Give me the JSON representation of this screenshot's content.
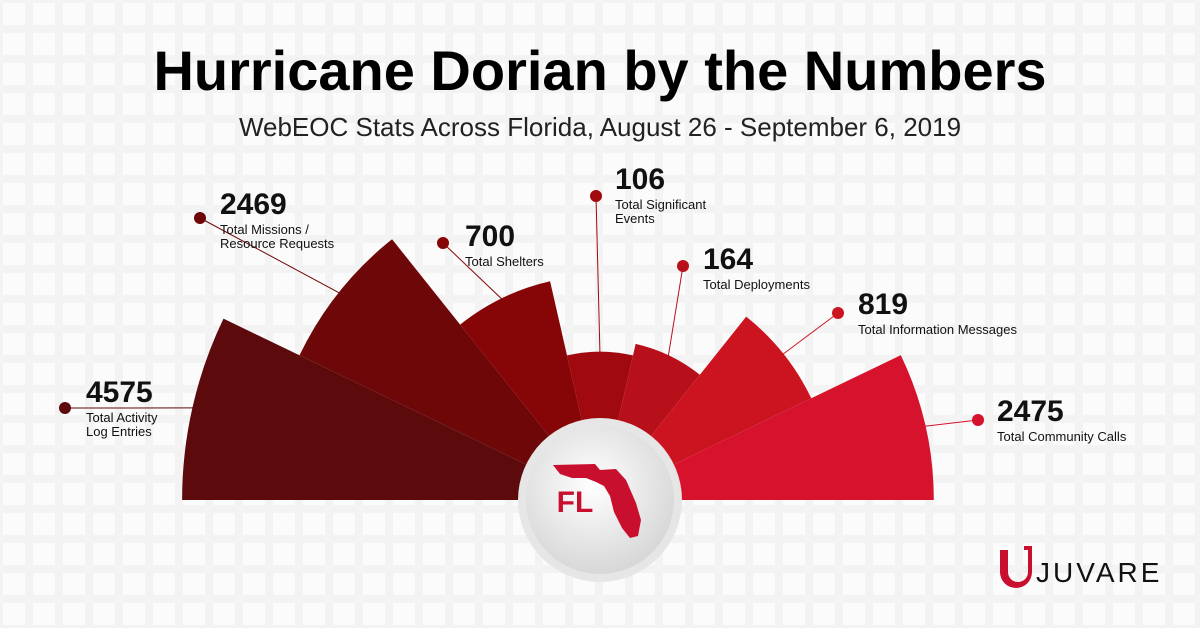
{
  "chart_data": {
    "type": "polar-area",
    "title": "Hurricane Dorian by the Numbers",
    "subtitle": "WebEOC Stats Across Florida, August 26 - September 6, 2019",
    "categories": [
      "Total Activity Log Entries",
      "Total Missions / Resource Requests",
      "Total Shelters",
      "Total Significant Events",
      "Total Deployments",
      "Total Information Messages",
      "Total Community Calls"
    ],
    "values": [
      4575,
      2469,
      700,
      106,
      164,
      819,
      2475
    ],
    "colors": [
      "#5c0a0c",
      "#6e0708",
      "#860607",
      "#a00a0e",
      "#b8101a",
      "#cc1420",
      "#d7122c"
    ],
    "center_label": "FL"
  },
  "logo": "JUVARE"
}
